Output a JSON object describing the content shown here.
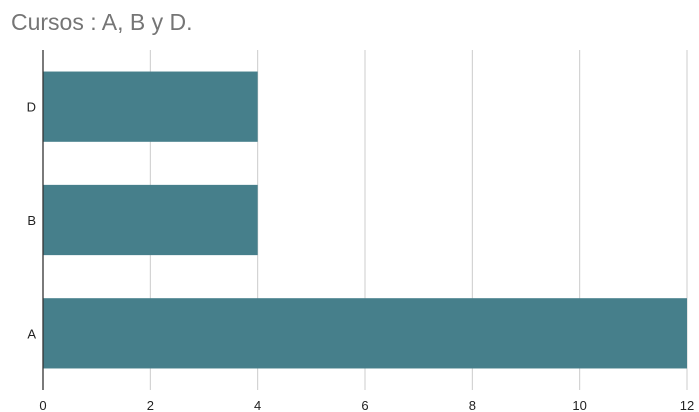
{
  "chart_data": {
    "type": "bar",
    "orientation": "horizontal",
    "title": "Cursos : A, B y D.",
    "categories": [
      "D",
      "B",
      "A"
    ],
    "values": [
      4,
      4,
      12
    ],
    "xlabel": "",
    "ylabel": "",
    "xlim": [
      0,
      12
    ],
    "xticks": [
      "0",
      "2",
      "4",
      "6",
      "8",
      "10",
      "12"
    ],
    "grid": true,
    "legend": "none",
    "bar_color": "#467f8b",
    "grid_color": "#cccccc",
    "axis_color": "#333333"
  }
}
